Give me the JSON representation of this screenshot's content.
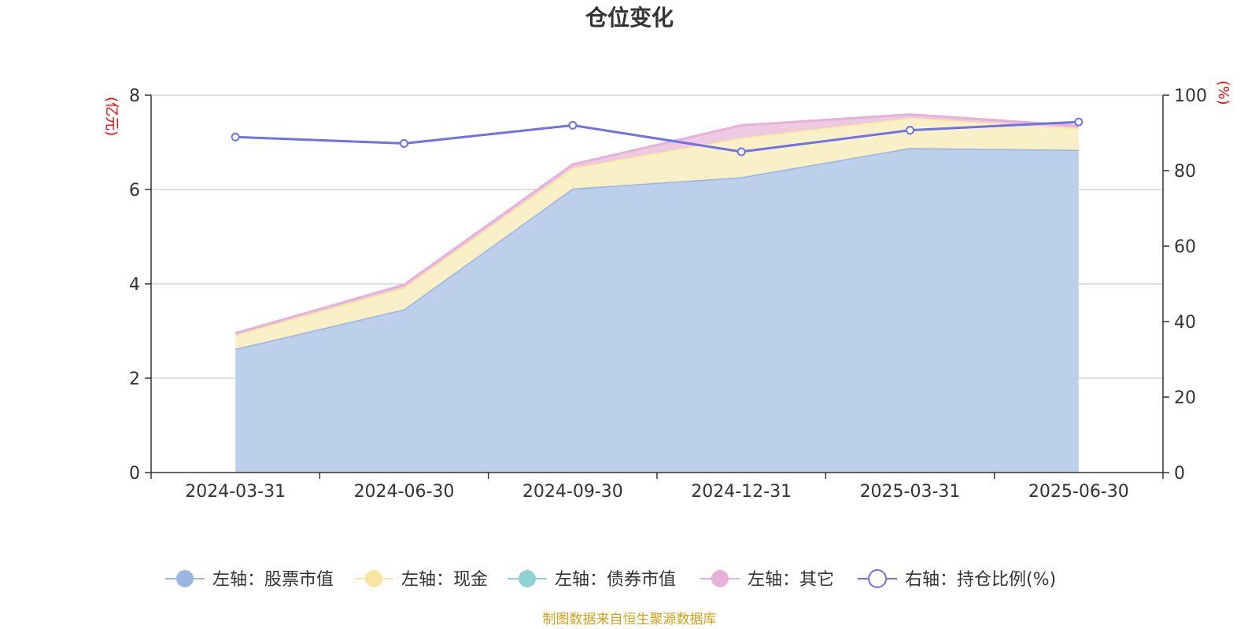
{
  "chart_data": {
    "type": "area",
    "title": "仓位变化",
    "left_axis_unit": "(亿元)",
    "right_axis_unit": "(%)",
    "categories": [
      "2024-03-31",
      "2024-06-30",
      "2024-09-30",
      "2024-12-31",
      "2025-03-31",
      "2025-06-30"
    ],
    "left_ylim": [
      0,
      8
    ],
    "left_yticks": [
      0,
      2,
      4,
      6,
      8
    ],
    "right_ylim": [
      0,
      100
    ],
    "right_yticks": [
      0,
      20,
      40,
      60,
      80,
      100
    ],
    "series": [
      {
        "name": "左轴：股票市值",
        "axis": "left",
        "stacked": true,
        "color": "#9ab5e0",
        "fill": "#b8cdea",
        "values": [
          2.62,
          3.46,
          6.02,
          6.26,
          6.88,
          6.84
        ]
      },
      {
        "name": "左轴：现金",
        "axis": "left",
        "stacked": true,
        "color": "#f8e6a0",
        "fill": "#faefc4",
        "values": [
          0.3,
          0.46,
          0.44,
          0.84,
          0.64,
          0.46
        ]
      },
      {
        "name": "左轴：债券市值",
        "axis": "left",
        "stacked": true,
        "color": "#8fd0d0",
        "fill": "#b8e2e2",
        "values": [
          0,
          0,
          0,
          0,
          0,
          0
        ]
      },
      {
        "name": "左轴：其它",
        "axis": "left",
        "stacked": true,
        "color": "#e8b0d8",
        "fill": "#ecc6e0",
        "values": [
          0.03,
          0.06,
          0.07,
          0.26,
          0.07,
          0.05
        ]
      },
      {
        "name": "右轴：持仓比例(%)",
        "axis": "right",
        "type": "line",
        "color": "#7070e8",
        "values": [
          88.9,
          87.2,
          92.0,
          85.0,
          90.7,
          92.9
        ]
      }
    ],
    "grid": true,
    "legend_position": "bottom"
  },
  "source_note": "制图数据来自恒生聚源数据库"
}
